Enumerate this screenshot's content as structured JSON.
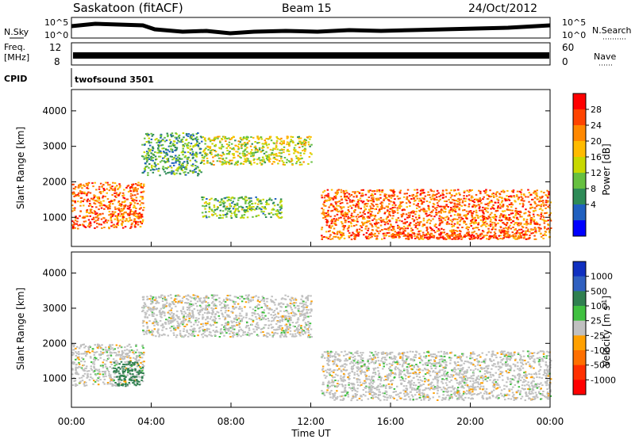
{
  "header": {
    "title": "Saskatoon (fitACF)",
    "beam": "Beam 15",
    "date": "24/Oct/2012"
  },
  "strips": {
    "nsky_label": "N.Sky",
    "nsky_ticks": [
      "10^5",
      "10^0"
    ],
    "nsearch_label": "N.Search",
    "nsearch_ticks": [
      "10^5",
      "10^0"
    ],
    "freq_label": "Freq.",
    "freq_unit": "[MHz]",
    "freq_ticks": [
      "12",
      "8"
    ],
    "nave_label": "Nave",
    "nave_ticks": [
      "60",
      "0"
    ],
    "cpid_label": "CPID",
    "cpid_value": "twofsound 3501"
  },
  "axes": {
    "y_label": "Slant Range [km]",
    "y_ticks": [
      "4000",
      "3000",
      "2000",
      "1000"
    ],
    "x_label": "Time UT",
    "x_ticks": [
      "00:00",
      "04:00",
      "08:00",
      "12:00",
      "16:00",
      "20:00",
      "00:00"
    ]
  },
  "colorbars": {
    "power_label": "Power [dB]",
    "power_ticks": [
      "28",
      "24",
      "20",
      "16",
      "12",
      "8",
      "4"
    ],
    "power_colors": [
      "#ff0000",
      "#ff4400",
      "#ff8800",
      "#ffbb00",
      "#c8d800",
      "#66c040",
      "#2e8b57",
      "#2060c0",
      "#0000ff"
    ],
    "velocity_label": "Velocity [m s",
    "velocity_sup": "-1",
    "velocity_close": "]",
    "velocity_ticks": [
      "1000",
      "500",
      "100",
      "25",
      "-25",
      "-100",
      "-500",
      "-1000"
    ],
    "velocity_colors": [
      "#1030c0",
      "#3060c0",
      "#308050",
      "#40c040",
      "#c0c0c0",
      "#ffa000",
      "#ff7000",
      "#ff3000",
      "#ff0000"
    ]
  },
  "chart_data": [
    {
      "type": "heatmap",
      "name": "power",
      "x_range_hours": [
        0,
        24
      ],
      "y_range_km": [
        180,
        4600
      ],
      "value_range_db": [
        0,
        32
      ],
      "regions": [
        {
          "t": [
            0.0,
            3.6
          ],
          "r": [
            700,
            2000
          ],
          "power_db": 26
        },
        {
          "t": [
            3.5,
            6.5
          ],
          "r": [
            2200,
            3400
          ],
          "power_db": 10
        },
        {
          "t": [
            6.5,
            12.0
          ],
          "r": [
            2500,
            3300
          ],
          "power_db": 16
        },
        {
          "t": [
            6.5,
            10.5
          ],
          "r": [
            1000,
            1600
          ],
          "power_db": 12
        },
        {
          "t": [
            12.5,
            24.0
          ],
          "r": [
            400,
            1800
          ],
          "power_db": 26
        },
        {
          "t": [
            16.0,
            23.0
          ],
          "r": [
            400,
            600
          ],
          "power_db": 29
        }
      ]
    },
    {
      "type": "heatmap",
      "name": "velocity",
      "x_range_hours": [
        0,
        24
      ],
      "y_range_km": [
        180,
        4600
      ],
      "value_range_ms": [
        -1000,
        1000
      ],
      "regions": [
        {
          "t": [
            0.0,
            3.6
          ],
          "r": [
            800,
            2000
          ],
          "velocity_ms": 0
        },
        {
          "t": [
            2.0,
            3.6
          ],
          "r": [
            800,
            1500
          ],
          "velocity_ms": 200
        },
        {
          "t": [
            3.5,
            12.0
          ],
          "r": [
            2200,
            3400
          ],
          "velocity_ms": 0
        },
        {
          "t": [
            12.5,
            24.0
          ],
          "r": [
            400,
            1800
          ],
          "velocity_ms": 0
        }
      ]
    }
  ]
}
